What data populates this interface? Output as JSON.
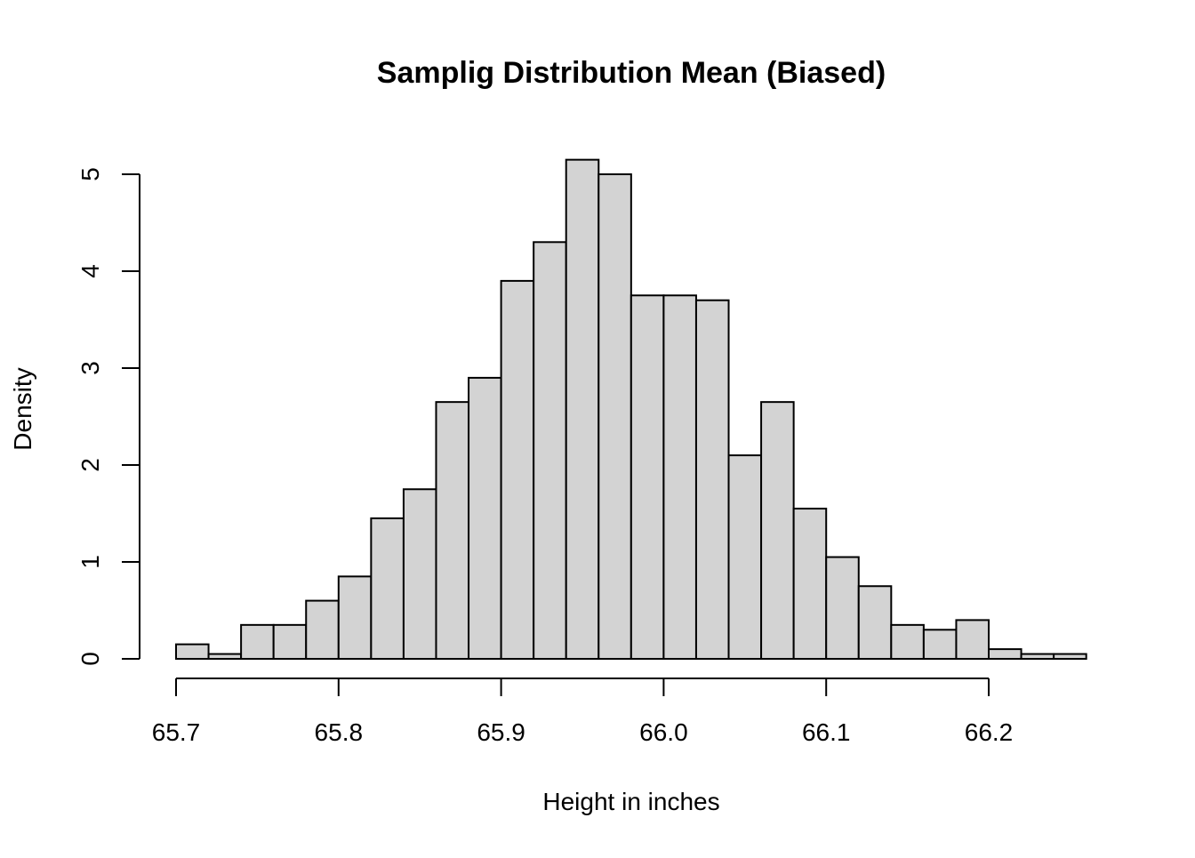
{
  "chart_data": {
    "type": "bar",
    "title": "Samplig Distribution Mean (Biased)",
    "xlabel": "Height in inches",
    "ylabel": "Density",
    "bin_start": 65.7,
    "bin_width": 0.02,
    "values": [
      0.15,
      0.05,
      0.35,
      0.35,
      0.6,
      0.85,
      1.45,
      1.75,
      2.65,
      2.9,
      3.9,
      4.3,
      5.15,
      5.0,
      3.75,
      3.75,
      3.7,
      2.1,
      2.65,
      1.55,
      1.05,
      0.75,
      0.35,
      0.3,
      0.4,
      0.1,
      0.05,
      0.05
    ],
    "xlim": [
      65.7,
      66.26
    ],
    "ylim": [
      0,
      5.15
    ],
    "x_ticks": [
      65.7,
      65.8,
      65.9,
      66.0,
      66.1,
      66.2
    ],
    "x_tick_labels": [
      "65.7",
      "65.8",
      "65.9",
      "66.0",
      "66.1",
      "66.2"
    ],
    "y_ticks": [
      0,
      1,
      2,
      3,
      4,
      5
    ],
    "y_tick_labels": [
      "0",
      "1",
      "2",
      "3",
      "4",
      "5"
    ],
    "bar_fill": "#d3d3d3",
    "grid": false
  }
}
